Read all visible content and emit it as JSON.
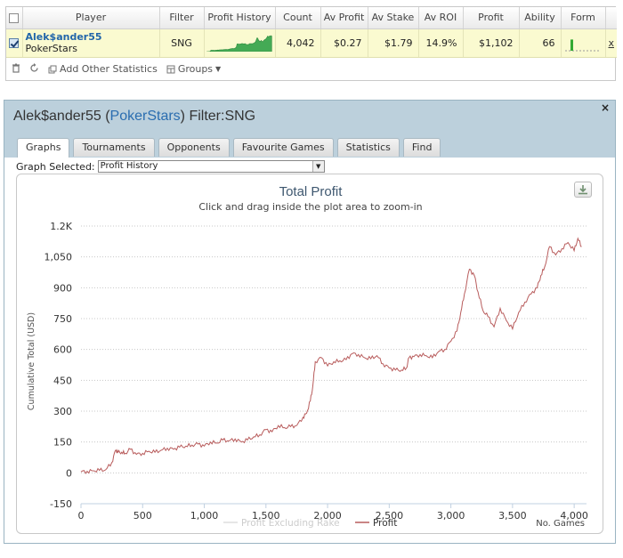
{
  "stats_table": {
    "columns": [
      "",
      "Player",
      "Filter",
      "Profit History",
      "Count",
      "Av Profit",
      "Av Stake",
      "Av ROI",
      "Profit",
      "Ability",
      "Form",
      ""
    ],
    "row": {
      "checked": true,
      "player_name": "Alek$ander55",
      "player_site": "PokerStars",
      "filter": "SNG",
      "count": "4,042",
      "av_profit": "$0.27",
      "av_stake": "$1.79",
      "av_roi": "14.9%",
      "profit": "$1,102",
      "ability": "66",
      "form_level": 0.7,
      "remove_label": "x"
    },
    "toolbar": {
      "delete_icon": "trash-icon",
      "refresh_icon": "refresh-icon",
      "add_stats_label": "Add Other Statistics",
      "groups_label": "Groups"
    }
  },
  "graph_window": {
    "title_player": "Alek$ander55",
    "title_site": "PokerStars",
    "title_filter": "Filter:SNG",
    "close_label": "×",
    "tabs": [
      {
        "label": "Graphs",
        "active": true
      },
      {
        "label": "Tournaments",
        "active": false
      },
      {
        "label": "Opponents",
        "active": false
      },
      {
        "label": "Favourite Games",
        "active": false
      },
      {
        "label": "Statistics",
        "active": false
      },
      {
        "label": "Find",
        "active": false
      }
    ],
    "graph_selected_label": "Graph Selected:",
    "graph_selected_value": "Profit History",
    "export_icon": "download-icon"
  },
  "chart_data": {
    "type": "line",
    "title": "Total Profit",
    "subtitle": "Click and drag inside the plot area to zoom-in",
    "xlabel": "No. Games",
    "ylabel": "Cumulative Total (USD)",
    "xlim": [
      0,
      4100
    ],
    "ylim": [
      -150,
      1200
    ],
    "x_ticks": [
      0,
      500,
      1000,
      1500,
      2000,
      2500,
      3000,
      3500,
      4000
    ],
    "x_tick_labels": [
      "0",
      "500",
      "1,000",
      "1,500",
      "2,000",
      "2,500",
      "3,000",
      "3,500",
      "4,000"
    ],
    "y_ticks": [
      -150,
      0,
      150,
      300,
      450,
      600,
      750,
      900,
      1050,
      1200
    ],
    "y_tick_labels": [
      "-150",
      "0",
      "150",
      "300",
      "450",
      "600",
      "750",
      "900",
      "1,050",
      "1.2K"
    ],
    "grid": true,
    "legend_position": "bottom-center",
    "series": [
      {
        "name": "Profit Excluding Rake",
        "color": "#dddddd",
        "visible": false,
        "x": [],
        "y": []
      },
      {
        "name": "Profit",
        "color": "#b85c5c",
        "visible": true,
        "x": [
          0,
          50,
          100,
          150,
          200,
          250,
          280,
          300,
          330,
          360,
          400,
          450,
          500,
          550,
          600,
          650,
          700,
          750,
          800,
          850,
          900,
          950,
          1000,
          1050,
          1100,
          1150,
          1200,
          1250,
          1300,
          1350,
          1400,
          1450,
          1500,
          1550,
          1600,
          1650,
          1700,
          1750,
          1800,
          1830,
          1860,
          1880,
          1900,
          1950,
          2000,
          2050,
          2100,
          2150,
          2200,
          2250,
          2300,
          2350,
          2400,
          2450,
          2500,
          2550,
          2600,
          2640,
          2660,
          2700,
          2750,
          2800,
          2850,
          2900,
          2950,
          3000,
          3050,
          3080,
          3110,
          3150,
          3190,
          3220,
          3260,
          3300,
          3350,
          3400,
          3450,
          3500,
          3550,
          3600,
          3650,
          3700,
          3730,
          3760,
          3800,
          3850,
          3900,
          3950,
          4000,
          4030,
          4060
        ],
        "y": [
          5,
          8,
          10,
          12,
          15,
          50,
          110,
          100,
          100,
          95,
          115,
          90,
          95,
          105,
          100,
          110,
          120,
          115,
          125,
          130,
          135,
          140,
          130,
          150,
          145,
          160,
          155,
          165,
          150,
          160,
          175,
          185,
          210,
          200,
          230,
          220,
          225,
          230,
          270,
          290,
          350,
          420,
          540,
          560,
          520,
          540,
          545,
          550,
          580,
          575,
          560,
          555,
          570,
          530,
          510,
          500,
          500,
          510,
          560,
          565,
          575,
          570,
          560,
          590,
          600,
          640,
          690,
          780,
          870,
          990,
          960,
          880,
          790,
          760,
          710,
          800,
          740,
          700,
          780,
          830,
          870,
          900,
          960,
          1000,
          1100,
          1060,
          1090,
          1120,
          1080,
          1140,
          1100
        ]
      }
    ]
  }
}
